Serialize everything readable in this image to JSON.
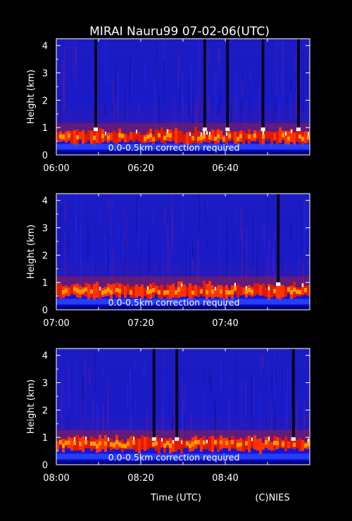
{
  "title": "MIRAI Nauru99 07-02-06(UTC)",
  "xlabel": "Time (UTC)",
  "credit": "(C)NIES",
  "chart_data": [
    {
      "type": "heatmap",
      "ylabel": "Height (km)",
      "y_ticks": [
        "0",
        "1",
        "2",
        "3",
        "4"
      ],
      "ylim": [
        0,
        4.25
      ],
      "x_ticks": [
        "06:00",
        "06:20",
        "06:40"
      ],
      "xlim": [
        "06:00",
        "07:00"
      ],
      "annotation": "0.0-0.5km correction required",
      "cloud_base_km": 0.65,
      "colors": {
        "background": "#1a1ac8",
        "layer": "#ff3300",
        "peak": "#ffffff"
      }
    },
    {
      "type": "heatmap",
      "ylabel": "Height (km)",
      "y_ticks": [
        "0",
        "1",
        "2",
        "3",
        "4"
      ],
      "ylim": [
        0,
        4.25
      ],
      "x_ticks": [
        "07:00",
        "07:20",
        "07:40"
      ],
      "xlim": [
        "07:00",
        "08:00"
      ],
      "annotation": "0.0-0.5km correction required",
      "cloud_base_km": 0.7,
      "colors": {
        "background": "#1a1ac8",
        "layer": "#ff3300",
        "peak": "#ffffff"
      }
    },
    {
      "type": "heatmap",
      "ylabel": "Height (km)",
      "y_ticks": [
        "0",
        "1",
        "2",
        "3",
        "4"
      ],
      "ylim": [
        0,
        4.25
      ],
      "x_ticks": [
        "08:00",
        "08:20",
        "08:40"
      ],
      "xlim": [
        "08:00",
        "09:00"
      ],
      "annotation": "0.0-0.5km correction required",
      "cloud_base_km": 0.75,
      "colors": {
        "background": "#1a1ac8",
        "layer": "#ff3300",
        "peak": "#ffffff"
      }
    }
  ]
}
